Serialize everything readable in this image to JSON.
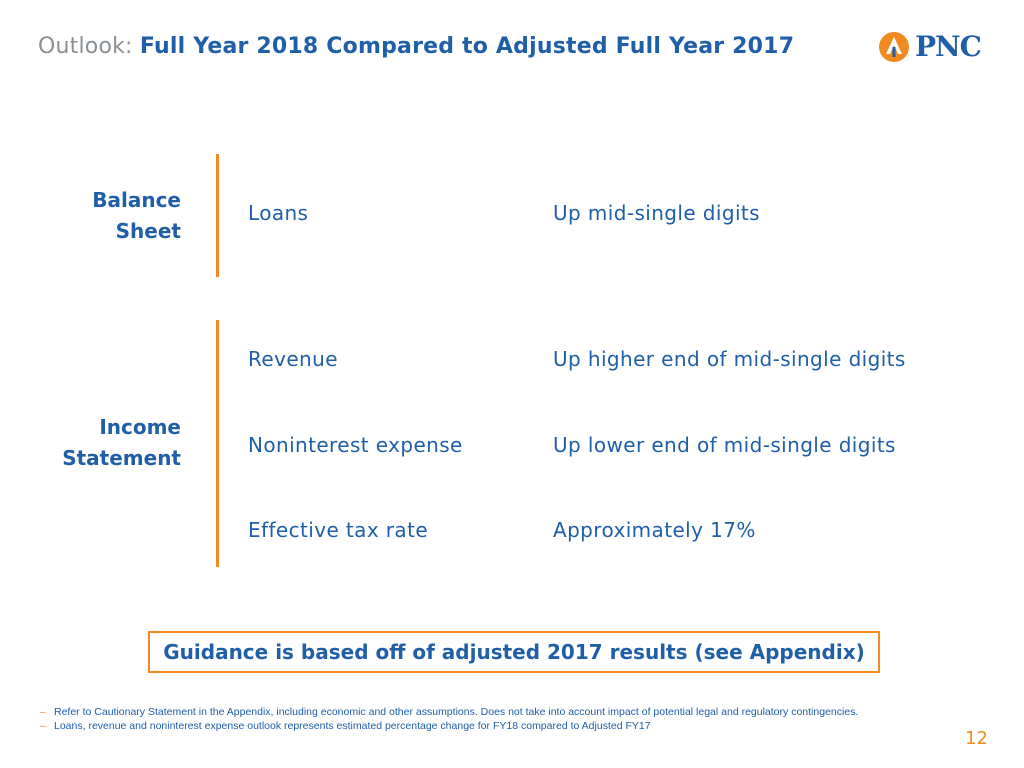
{
  "header": {
    "title_lead": "Outlook:",
    "title_main": "Full Year 2018 Compared to Adjusted Full Year 2017"
  },
  "logo": {
    "text": "PNC",
    "icon": "pnc-logo-icon"
  },
  "balance_sheet": {
    "label_line1": "Balance",
    "label_line2": "Sheet",
    "rows": [
      {
        "item": "Loans",
        "value": "Up mid-single digits"
      }
    ]
  },
  "income_statement": {
    "label_line1": "Income",
    "label_line2": "Statement",
    "rows": [
      {
        "item": "Revenue",
        "value": "Up higher end of mid-single digits"
      },
      {
        "item": "Noninterest expense",
        "value": "Up lower end of mid-single digits"
      },
      {
        "item": "Effective tax rate",
        "value": "Approximately 17%"
      }
    ]
  },
  "callout": {
    "text": "Guidance is based off of adjusted 2017 results (see Appendix)"
  },
  "footnotes": {
    "dash": "–",
    "lines": [
      "Refer to Cautionary Statement in the Appendix, including economic and other assumptions.  Does not take into account impact of potential legal and regulatory contingencies.",
      "Loans, revenue and noninterest expense outlook represents estimated percentage change for FY18 compared to Adjusted FY17"
    ]
  },
  "page_number": "12",
  "colors": {
    "brand_blue": "#1f5fa8",
    "accent_orange": "#f08a21",
    "title_gray": "#8a8f93"
  }
}
